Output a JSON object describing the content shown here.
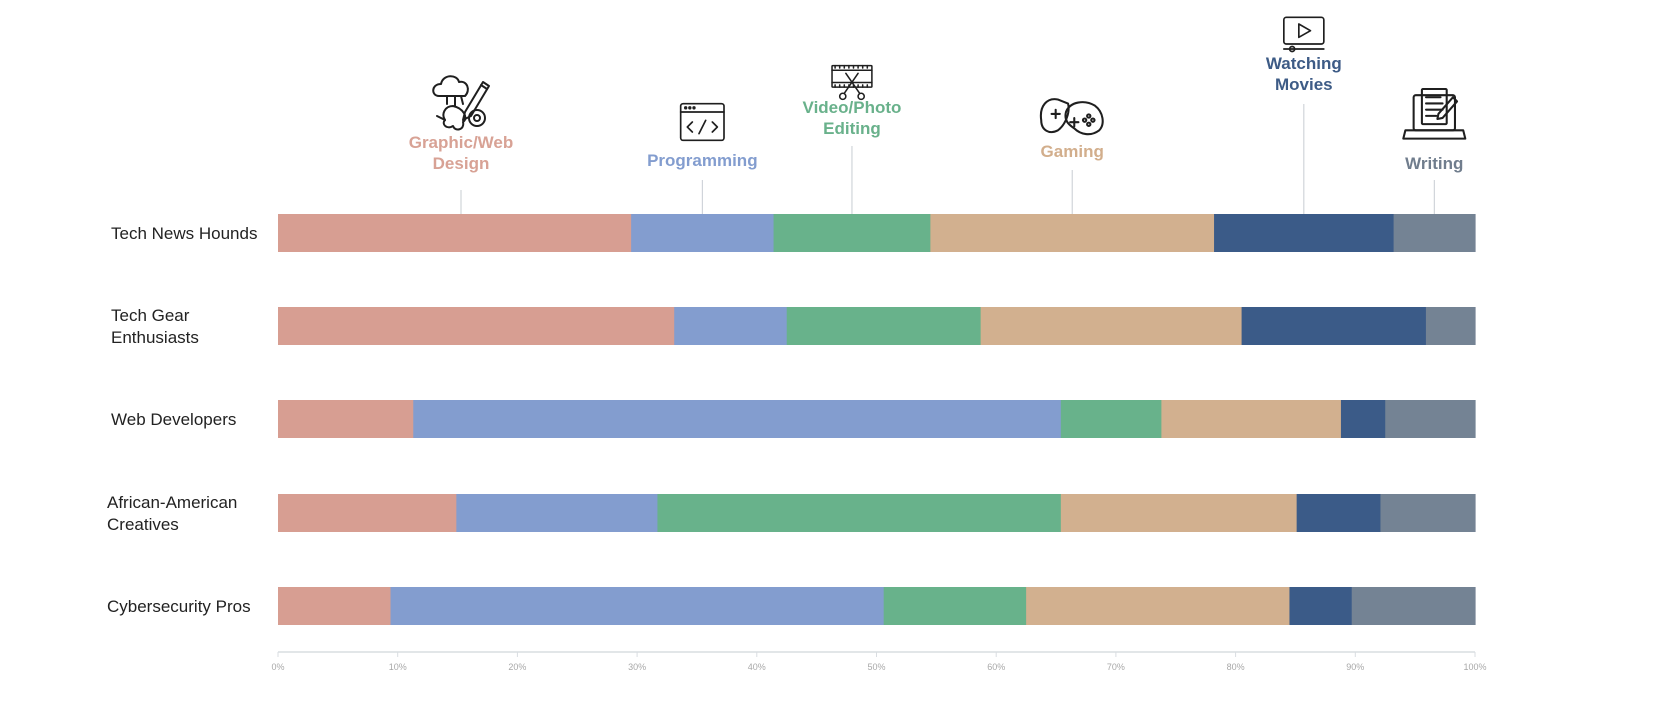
{
  "chart_data": {
    "type": "bar",
    "orientation": "horizontal",
    "stacked": true,
    "normalized": true,
    "title": "",
    "xlabel": "",
    "ylabel": "",
    "xlim": [
      0,
      100
    ],
    "x_ticks": [
      "0%",
      "10%",
      "20%",
      "30%",
      "40%",
      "50%",
      "60%",
      "70%",
      "80%",
      "90%",
      "100%"
    ],
    "categories": [
      {
        "lines": [
          "Tech News Hounds"
        ]
      },
      {
        "lines": [
          "Tech Gear",
          "Enthusiasts"
        ]
      },
      {
        "lines": [
          "Web Developers"
        ]
      },
      {
        "lines": [
          "African-American",
          "Creatives"
        ]
      },
      {
        "lines": [
          "Cybersecurity Pros"
        ]
      }
    ],
    "series": [
      {
        "name": "Graphic/Web Design",
        "label_lines": [
          "Graphic/Web",
          "Design"
        ],
        "icon": "design-tools-icon",
        "color": "#d79e92",
        "label_color": "#d8a295",
        "values": [
          29.5,
          33.1,
          11.3,
          14.9,
          9.4
        ]
      },
      {
        "name": "Programming",
        "label_lines": [
          "Programming"
        ],
        "icon": "code-window-icon",
        "color": "#839dcf",
        "label_color": "#839dcf",
        "values": [
          11.9,
          9.4,
          54.1,
          16.8,
          41.2
        ]
      },
      {
        "name": "Video/Photo Editing",
        "label_lines": [
          "Video/Photo",
          "Editing"
        ],
        "icon": "film-scissors-icon",
        "color": "#68b28b",
        "label_color": "#69b18b",
        "values": [
          13.1,
          16.2,
          8.4,
          33.7,
          11.9
        ]
      },
      {
        "name": "Gaming",
        "label_lines": [
          "Gaming"
        ],
        "icon": "gamepad-icon",
        "color": "#d2b08f",
        "label_color": "#d2ae8c",
        "values": [
          23.7,
          21.8,
          15.0,
          19.7,
          22.0
        ]
      },
      {
        "name": "Watching Movies",
        "label_lines": [
          "Watching",
          "Movies"
        ],
        "icon": "video-player-icon",
        "color": "#3b5b88",
        "label_color": "#3d5b86",
        "values": [
          15.0,
          15.4,
          3.7,
          7.0,
          5.2
        ]
      },
      {
        "name": "Writing",
        "label_lines": [
          "Writing"
        ],
        "icon": "laptop-document-icon",
        "color": "#748394",
        "label_color": "#707d8d",
        "values": [
          6.8,
          4.1,
          7.5,
          7.9,
          10.3
        ]
      }
    ],
    "legend_placement": "top, above each segment",
    "grid": false
  }
}
